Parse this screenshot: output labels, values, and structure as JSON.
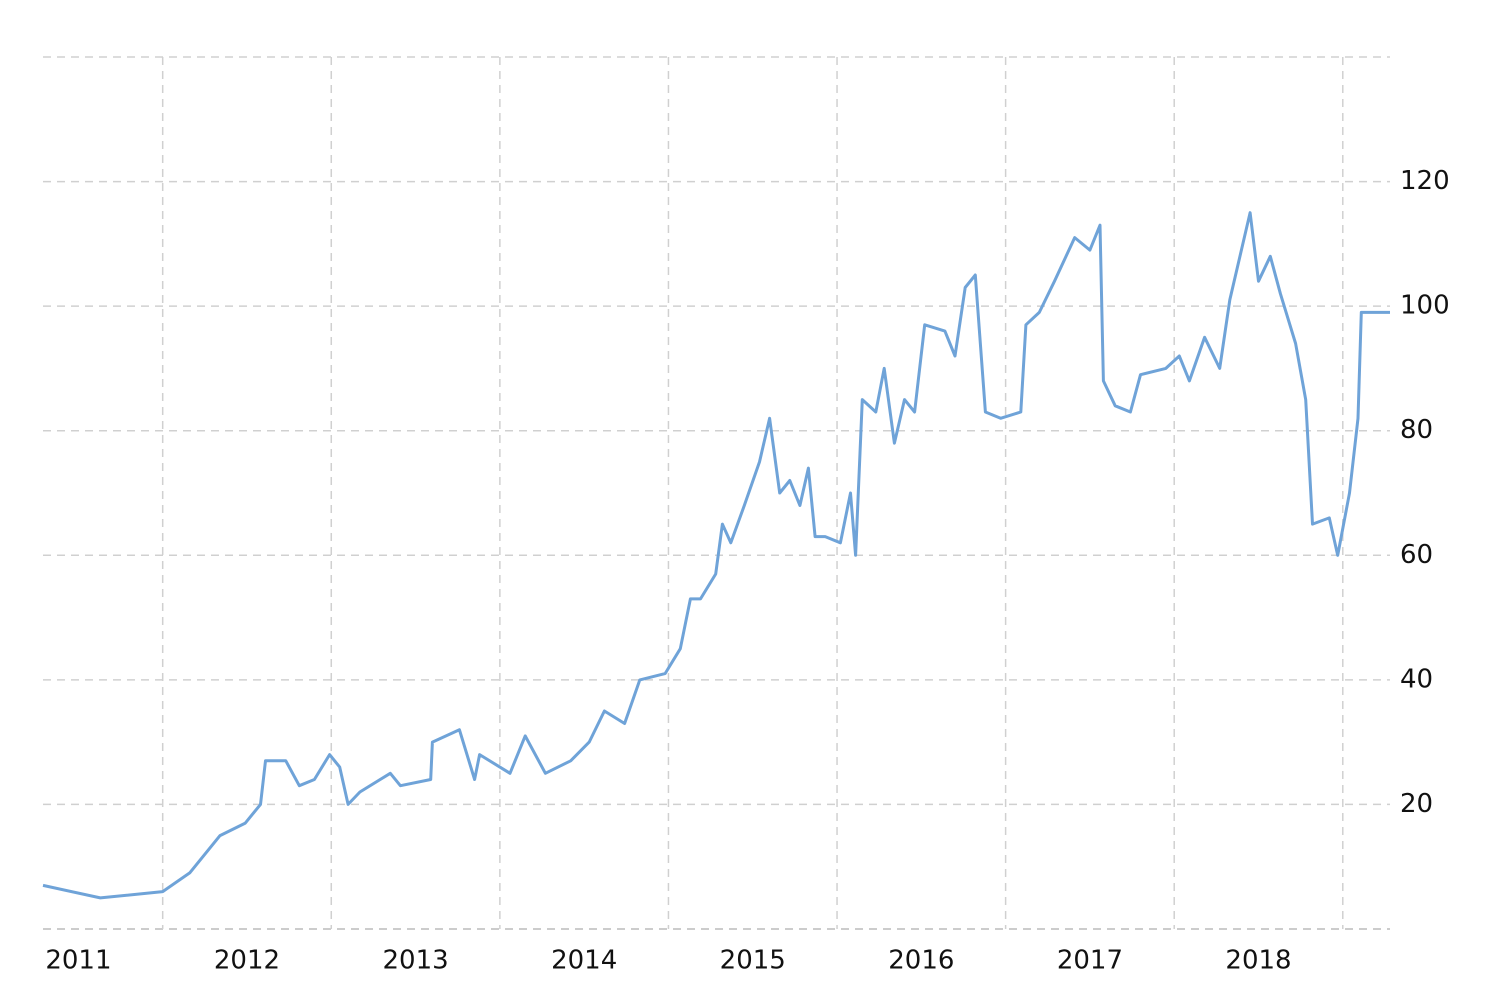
{
  "chart_data": {
    "type": "line",
    "x": [
      2011.29,
      2011.63,
      2012.0,
      2012.16,
      2012.34,
      2012.49,
      2012.58,
      2012.61,
      2012.73,
      2012.81,
      2012.9,
      2012.99,
      2013.05,
      2013.1,
      2013.17,
      2013.35,
      2013.41,
      2013.59,
      2013.6,
      2013.76,
      2013.85,
      2013.88,
      2014.06,
      2014.15,
      2014.27,
      2014.42,
      2014.53,
      2014.62,
      2014.74,
      2014.83,
      2014.98,
      2015.07,
      2015.13,
      2015.19,
      2015.28,
      2015.32,
      2015.37,
      2015.45,
      2015.54,
      2015.6,
      2015.66,
      2015.72,
      2015.78,
      2015.83,
      2015.87,
      2015.93,
      2016.02,
      2016.08,
      2016.11,
      2016.15,
      2016.23,
      2016.28,
      2016.34,
      2016.4,
      2016.46,
      2016.52,
      2016.64,
      2016.7,
      2016.76,
      2016.82,
      2016.88,
      2016.97,
      2017.09,
      2017.12,
      2017.2,
      2017.29,
      2017.41,
      2017.5,
      2017.56,
      2017.58,
      2017.65,
      2017.74,
      2017.8,
      2017.95,
      2018.03,
      2018.09,
      2018.18,
      2018.27,
      2018.33,
      2018.45,
      2018.5,
      2018.57,
      2018.63,
      2018.72,
      2018.78,
      2018.82,
      2018.92,
      2018.97,
      2019.04,
      2019.09,
      2019.11,
      2019.28
    ],
    "series": [
      {
        "color": "#6fa3d8",
        "values": [
          7,
          5,
          6,
          9,
          15,
          17,
          20,
          27,
          27,
          23,
          24,
          28,
          26,
          20,
          22,
          25,
          23,
          24,
          30,
          32,
          24,
          28,
          25,
          31,
          25,
          27,
          30,
          35,
          33,
          40,
          41,
          45,
          53,
          53,
          57,
          65,
          62,
          68,
          75,
          82,
          70,
          72,
          68,
          74,
          63,
          63,
          62,
          70,
          60,
          85,
          83,
          90,
          78,
          85,
          83,
          97,
          96,
          92,
          103,
          105,
          83,
          82,
          83,
          97,
          99,
          104,
          111,
          109,
          113,
          88,
          84,
          83,
          89,
          90,
          92,
          88,
          95,
          90,
          101,
          115,
          104,
          108,
          102,
          94,
          85,
          65,
          66,
          60,
          70,
          82,
          99,
          99
        ]
      }
    ],
    "xlim": [
      2011.29,
      2019.28
    ],
    "ylim": [
      0,
      140
    ],
    "yticks": [
      20,
      40,
      60,
      80,
      100,
      120
    ],
    "xticks": [
      {
        "value": 2011.5,
        "label": "2011"
      },
      {
        "value": 2012.5,
        "label": "2012"
      },
      {
        "value": 2013.5,
        "label": "2013"
      },
      {
        "value": 2014.5,
        "label": "2014"
      },
      {
        "value": 2015.5,
        "label": "2015"
      },
      {
        "value": 2016.5,
        "label": "2016"
      },
      {
        "value": 2017.5,
        "label": "2017"
      },
      {
        "value": 2018.5,
        "label": "2018"
      }
    ],
    "xgrid": [
      2012,
      2013,
      2014,
      2015,
      2016,
      2017,
      2018,
      2019
    ],
    "grid": true
  }
}
